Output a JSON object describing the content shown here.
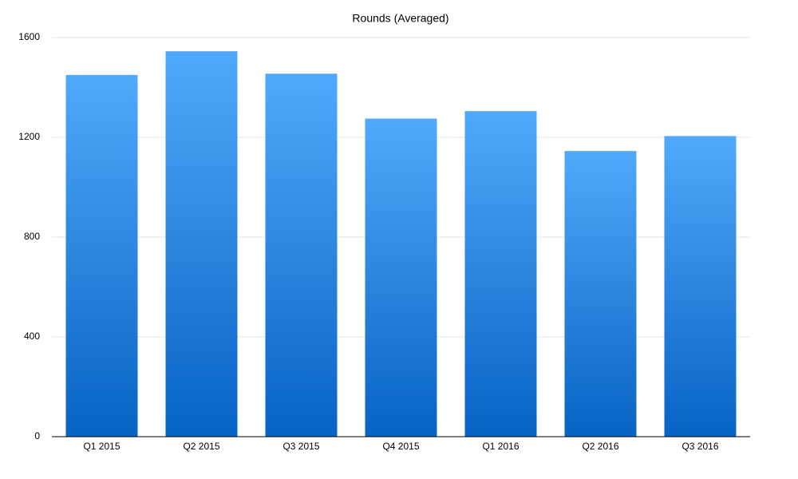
{
  "chart_data": {
    "type": "bar",
    "title": "Rounds (Averaged)",
    "categories": [
      "Q1 2015",
      "Q2 2015",
      "Q3 2015",
      "Q4 2015",
      "Q1 2016",
      "Q2 2016",
      "Q3 2016"
    ],
    "values": [
      1450,
      1545,
      1455,
      1275,
      1305,
      1145,
      1205
    ],
    "gradient": [
      "#51a9fb",
      "#0763c4"
    ],
    "ylim": [
      0,
      1600
    ],
    "yticks": [
      0,
      400,
      800,
      1200,
      1600
    ],
    "grid": true
  }
}
